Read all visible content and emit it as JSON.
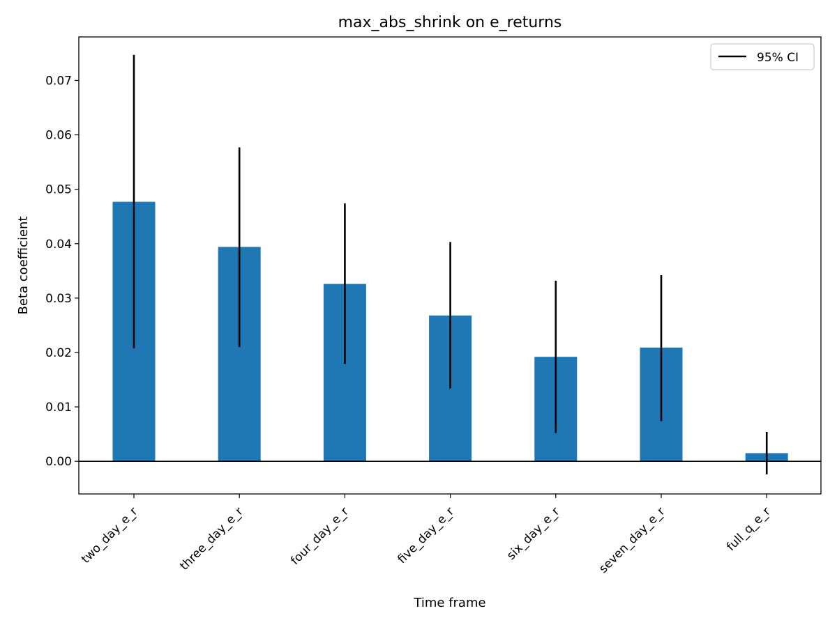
{
  "chart_data": {
    "type": "bar",
    "title": "max_abs_shrink on e_returns",
    "xlabel": "Time frame",
    "ylabel": "Beta coefficient",
    "categories": [
      "two_day_e_r",
      "three_day_e_r",
      "four_day_e_r",
      "five_day_e_r",
      "six_day_e_r",
      "seven_day_e_r",
      "full_q_e_r"
    ],
    "series": [
      {
        "values": [
          0.0477,
          0.0394,
          0.0326,
          0.0268,
          0.0192,
          0.0209,
          0.0015
        ],
        "ci_lower": [
          0.0208,
          0.021,
          0.0179,
          0.0134,
          0.0052,
          0.0074,
          -0.0024
        ],
        "ci_upper": [
          0.0747,
          0.0577,
          0.0474,
          0.0403,
          0.0332,
          0.0342,
          0.0054
        ],
        "color": "#1f77b4"
      }
    ],
    "ylim": [
      -0.006,
      0.078
    ],
    "yticks": [
      0.0,
      0.01,
      0.02,
      0.03,
      0.04,
      0.05,
      0.06,
      0.07
    ],
    "ytick_labels": [
      "0.00",
      "0.01",
      "0.02",
      "0.03",
      "0.04",
      "0.05",
      "0.06",
      "0.07"
    ],
    "zero_line": true,
    "grid": false,
    "legend": {
      "placement": "top-right",
      "entries": [
        {
          "label": "95% CI",
          "color": "#000000",
          "mark": "line"
        }
      ]
    }
  }
}
